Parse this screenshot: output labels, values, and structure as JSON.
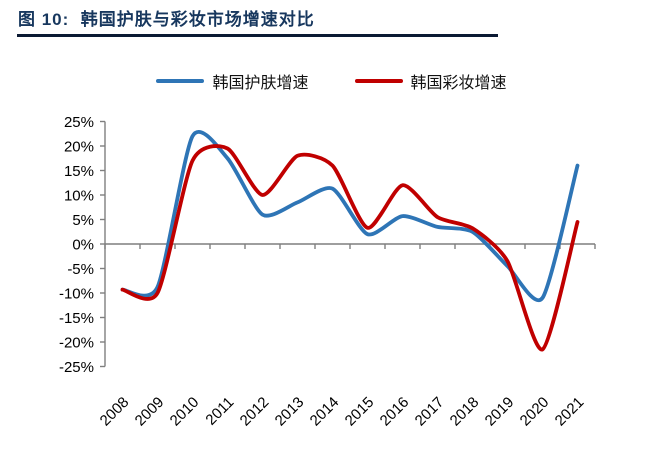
{
  "figure": {
    "title": "图 10:  韩国护肤与彩妆市场增速对比",
    "title_color": "#17375E",
    "rule_color": "#0B1A33"
  },
  "legend": {
    "items": [
      {
        "label": "韩国护肤增速",
        "color": "#2E75B6"
      },
      {
        "label": "韩国彩妆增速",
        "color": "#C00000"
      }
    ]
  },
  "chart_data": {
    "type": "line",
    "smooth": true,
    "title": "韩国护肤与彩妆市场增速对比",
    "categories": [
      "2008",
      "2009",
      "2010",
      "2011",
      "2012",
      "2013",
      "2014",
      "2015",
      "2016",
      "2017",
      "2018",
      "2019",
      "2020",
      "2021"
    ],
    "series": [
      {
        "name": "韩国护肤增速",
        "color": "#2E75B6",
        "values": [
          -9.3,
          -8.8,
          22,
          17.5,
          6,
          8.5,
          11.3,
          2,
          5.7,
          3.5,
          2.5,
          -4.5,
          -11,
          16
        ]
      },
      {
        "name": "韩国彩妆增速",
        "color": "#C00000",
        "values": [
          -9.3,
          -10,
          17,
          19.5,
          10,
          18,
          16,
          3.3,
          12,
          5.5,
          3.2,
          -3.5,
          -21.5,
          4.5
        ]
      }
    ],
    "ylim": [
      -25,
      25
    ],
    "ytick_step": 5,
    "ytick_labels": [
      "25%",
      "20%",
      "15%",
      "10%",
      "5%",
      "0%",
      "-5%",
      "-10%",
      "-15%",
      "-20%",
      "-25%"
    ],
    "xlabel": "",
    "ylabel": "",
    "grid": false,
    "legend_position": "top",
    "axis_color": "#7F7F7F",
    "tick_label_color": "#000000"
  }
}
